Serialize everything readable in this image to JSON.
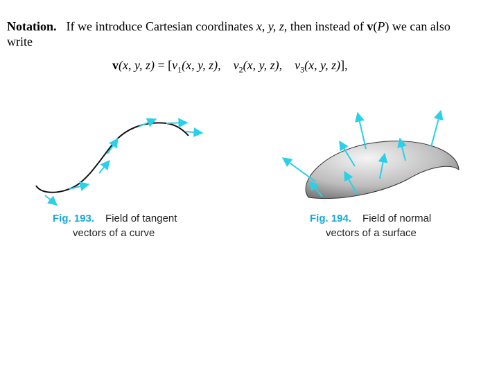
{
  "notation": {
    "heading": "Notation.",
    "text": [
      "If we introduce Cartesian coordinates ",
      "x, y, z,",
      " then instead of ",
      "v",
      "(",
      "P",
      ") we can also",
      "write"
    ]
  },
  "equation": [
    "v",
    "(x, y, z)",
    " = [",
    "v",
    "1",
    "(x, y, z),",
    "    ",
    "v",
    "2",
    "(x, y, z),",
    "    ",
    "v",
    "3",
    "(x, y, z)",
    "],"
  ],
  "figures": [
    {
      "number": "Fig. 193.",
      "caption": [
        "Field of tangent",
        "vectors of a curve"
      ]
    },
    {
      "number": "Fig. 194.",
      "caption": [
        "Field of normal",
        "vectors of a surface"
      ]
    }
  ]
}
